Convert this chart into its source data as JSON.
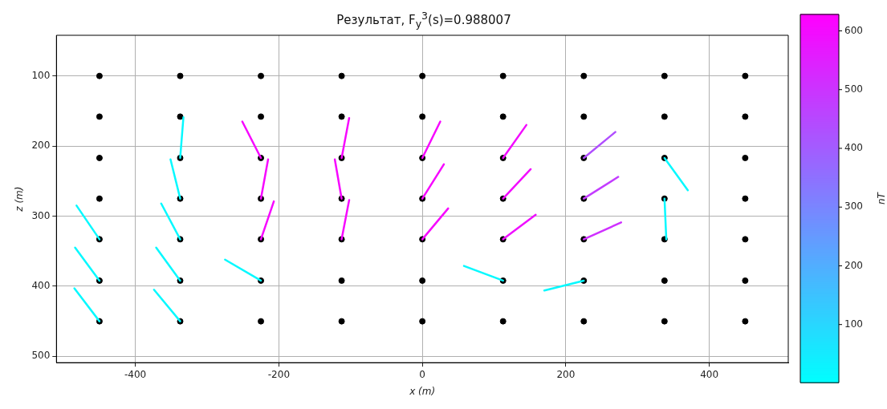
{
  "chart_data": {
    "type": "scatter",
    "title": "Результат,  F$_{y}$$^{3}$(s)=0.988007",
    "xlabel": "x (m)",
    "ylabel": "z (m)",
    "clabel": "nT",
    "xlim": [
      -510,
      510
    ],
    "ylim": [
      509,
      42
    ],
    "xticks": [
      -400,
      -200,
      0,
      200,
      400
    ],
    "yticks": [
      100,
      200,
      300,
      400,
      500
    ],
    "clim": [
      1,
      628
    ],
    "cticks": [
      100,
      200,
      300,
      400,
      500,
      600
    ],
    "grid": true,
    "legend": false,
    "series": [
      {
        "type": "scatter",
        "color": "#000000",
        "marker": "circle",
        "x": [
          -450,
          -450,
          -450,
          -450,
          -450,
          -450,
          -450,
          -337.5,
          -337.5,
          -337.5,
          -337.5,
          -337.5,
          -337.5,
          -337.5,
          -225,
          -225,
          -225,
          -225,
          -225,
          -225,
          -225,
          -112.5,
          -112.5,
          -112.5,
          -112.5,
          -112.5,
          -112.5,
          -112.5,
          0,
          0,
          0,
          0,
          0,
          0,
          0,
          112.5,
          112.5,
          112.5,
          112.5,
          112.5,
          112.5,
          112.5,
          225,
          225,
          225,
          225,
          225,
          225,
          225,
          337.5,
          337.5,
          337.5,
          337.5,
          337.5,
          337.5,
          337.5,
          450,
          450,
          450,
          450,
          450,
          450,
          450
        ],
        "values": [
          100,
          158,
          217,
          275,
          333,
          392,
          450,
          100,
          158,
          217,
          275,
          333,
          392,
          450,
          100,
          158,
          217,
          275,
          333,
          392,
          450,
          100,
          158,
          217,
          275,
          333,
          392,
          450,
          100,
          158,
          217,
          275,
          333,
          392,
          450,
          100,
          158,
          217,
          275,
          333,
          392,
          450,
          100,
          158,
          217,
          275,
          333,
          392,
          450,
          100,
          158,
          217,
          275,
          333,
          392,
          450,
          100,
          158,
          217,
          275,
          333,
          392,
          450
        ]
      },
      {
        "type": "line",
        "marker": "none",
        "color": "#06f9ff",
        "x": [
          -337.5,
          -333
        ],
        "values": [
          217,
          159
        ]
      },
      {
        "type": "line",
        "marker": "none",
        "color": "#06f9ff",
        "x": [
          -337.5,
          -351
        ],
        "values": [
          275,
          219
        ]
      },
      {
        "type": "line",
        "marker": "none",
        "color": "#06f9ff",
        "x": [
          -337.5,
          -364
        ],
        "values": [
          333,
          282
        ]
      },
      {
        "type": "line",
        "marker": "none",
        "color": "#06f9ff",
        "x": [
          -337.5,
          -371
        ],
        "values": [
          392,
          345
        ]
      },
      {
        "type": "line",
        "marker": "none",
        "color": "#06f9ff",
        "x": [
          -337.5,
          -374
        ],
        "values": [
          450,
          405
        ]
      },
      {
        "type": "line",
        "marker": "none",
        "color": "#06f9ff",
        "x": [
          -450,
          -482
        ],
        "values": [
          333,
          285
        ]
      },
      {
        "type": "line",
        "marker": "none",
        "color": "#06f9ff",
        "x": [
          -450,
          -484
        ],
        "values": [
          392,
          345
        ]
      },
      {
        "type": "line",
        "marker": "none",
        "color": "#06f9ff",
        "x": [
          -450,
          -485
        ],
        "values": [
          450,
          403
        ]
      },
      {
        "type": "line",
        "marker": "none",
        "color": "#f707ff",
        "x": [
          -225,
          -251
        ],
        "values": [
          217,
          165
        ]
      },
      {
        "type": "line",
        "marker": "none",
        "color": "#f707ff",
        "x": [
          -225,
          -215
        ],
        "values": [
          275,
          219
        ]
      },
      {
        "type": "line",
        "marker": "none",
        "color": "#f707ff",
        "x": [
          -225,
          -207
        ],
        "values": [
          333,
          279
        ]
      },
      {
        "type": "line",
        "marker": "none",
        "color": "#06f9ff",
        "x": [
          -225,
          -275
        ],
        "values": [
          392,
          362
        ]
      },
      {
        "type": "line",
        "marker": "none",
        "color": "#f707ff",
        "x": [
          -112.5,
          -102
        ],
        "values": [
          217,
          160
        ]
      },
      {
        "type": "line",
        "marker": "none",
        "color": "#f707ff",
        "x": [
          -112.5,
          -122
        ],
        "values": [
          275,
          219
        ]
      },
      {
        "type": "line",
        "marker": "none",
        "color": "#f707ff",
        "x": [
          -112.5,
          -102
        ],
        "values": [
          333,
          277
        ]
      },
      {
        "type": "line",
        "marker": "none",
        "color": "#f707ff",
        "x": [
          0,
          25
        ],
        "values": [
          217,
          165
        ]
      },
      {
        "type": "line",
        "marker": "none",
        "color": "#f707ff",
        "x": [
          0,
          30
        ],
        "values": [
          275,
          226
        ]
      },
      {
        "type": "line",
        "marker": "none",
        "color": "#f707ff",
        "x": [
          0,
          36
        ],
        "values": [
          333,
          289
        ]
      },
      {
        "type": "line",
        "marker": "none",
        "color": "#f30cff",
        "x": [
          112.5,
          145
        ],
        "values": [
          217,
          170
        ]
      },
      {
        "type": "line",
        "marker": "none",
        "color": "#f30cff",
        "x": [
          112.5,
          151
        ],
        "values": [
          275,
          233
        ]
      },
      {
        "type": "line",
        "marker": "none",
        "color": "#ef10ff",
        "x": [
          112.5,
          158
        ],
        "values": [
          333,
          298
        ]
      },
      {
        "type": "line",
        "marker": "none",
        "color": "#06f9ff",
        "x": [
          112.5,
          58
        ],
        "values": [
          392,
          371
        ]
      },
      {
        "type": "line",
        "marker": "none",
        "color": "#b04eff",
        "x": [
          225,
          269
        ],
        "values": [
          217,
          180
        ]
      },
      {
        "type": "line",
        "marker": "none",
        "color": "#c33cff",
        "x": [
          225,
          273
        ],
        "values": [
          275,
          244
        ]
      },
      {
        "type": "line",
        "marker": "none",
        "color": "#cf30ff",
        "x": [
          225,
          277
        ],
        "values": [
          333,
          309
        ]
      },
      {
        "type": "line",
        "marker": "none",
        "color": "#06f9ff",
        "x": [
          225,
          170
        ],
        "values": [
          392,
          406
        ]
      },
      {
        "type": "line",
        "marker": "none",
        "color": "#06f9ff",
        "x": [
          337.5,
          370
        ],
        "values": [
          217,
          263
        ]
      },
      {
        "type": "line",
        "marker": "none",
        "color": "#06f9ff",
        "x": [
          337.5,
          340
        ],
        "values": [
          275,
          333
        ]
      }
    ]
  }
}
